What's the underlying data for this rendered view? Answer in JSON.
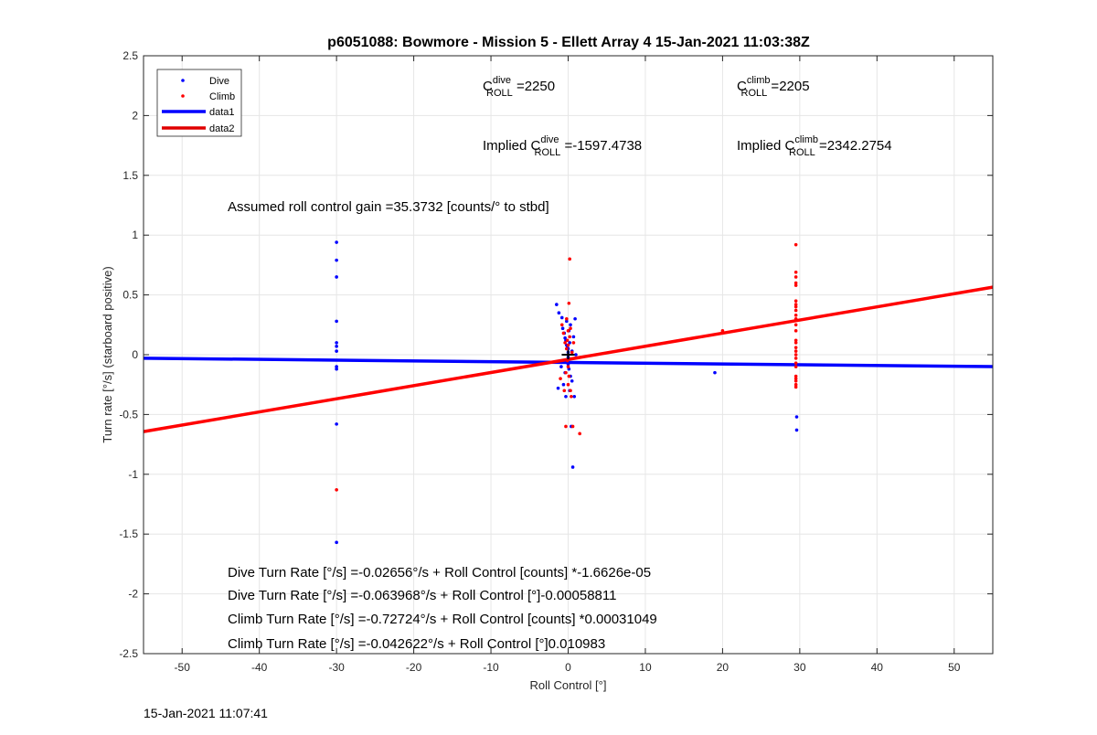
{
  "chart_data": {
    "type": "scatter",
    "title": "p6051088: Bowmore - Mission 5 - Ellett Array 4 15-Jan-2021 11:03:38Z",
    "xlabel": "Roll Control [°]",
    "ylabel": "Turn rate [°/s] (starboard positive)",
    "xlim": [
      -55,
      55
    ],
    "ylim": [
      -2.5,
      2.5
    ],
    "xticks": [
      -50,
      -40,
      -30,
      -20,
      -10,
      0,
      10,
      20,
      30,
      40,
      50
    ],
    "yticks": [
      -2.5,
      -2,
      -1.5,
      -1,
      -0.5,
      0,
      0.5,
      1,
      1.5,
      2,
      2.5
    ],
    "xtick_labels": [
      "-50",
      "-40",
      "-30",
      "-20",
      "-10",
      "0",
      "10",
      "20",
      "30",
      "40",
      "50"
    ],
    "ytick_labels": [
      "-2.5",
      "-2",
      "-1.5",
      "-1",
      "-0.5",
      "0",
      "0.5",
      "1",
      "1.5",
      "2",
      "2.5"
    ],
    "grid": true,
    "legend_position": "top-left",
    "series": [
      {
        "name": "Dive",
        "kind": "scatter",
        "color": "#0000ff",
        "x": [
          -30,
          -30,
          -30,
          -30,
          -30,
          -30,
          -30,
          -30,
          -30,
          -30,
          -30,
          -1.5,
          -1.3,
          -1.2,
          -0.9,
          -0.8,
          -0.7,
          -0.6,
          -0.5,
          -0.4,
          -0.4,
          -0.3,
          -0.3,
          -0.2,
          -0.2,
          -0.1,
          -0.1,
          0,
          0,
          0,
          0,
          0.1,
          0.1,
          0.2,
          0.2,
          0.3,
          0.3,
          0.4,
          0.5,
          0.5,
          0.6,
          0.7,
          0.8,
          0.9,
          1.0,
          19,
          29.6,
          29.6
        ],
        "y": [
          0.94,
          0.79,
          0.65,
          0.28,
          0.1,
          0.07,
          0.03,
          -0.1,
          -0.12,
          -0.58,
          -1.57,
          0.42,
          -0.28,
          0.35,
          -0.1,
          0.31,
          0.22,
          -0.25,
          0.18,
          0.14,
          -0.15,
          0.12,
          -0.35,
          0.28,
          0.08,
          0.06,
          -0.05,
          0.05,
          0.02,
          -0.02,
          -0.08,
          0.2,
          -0.12,
          0.1,
          -0.3,
          0.25,
          -0.18,
          -0.6,
          0.03,
          -0.22,
          -0.94,
          0.15,
          -0.35,
          0.3,
          0.0,
          -0.15,
          -0.52,
          -0.63
        ]
      },
      {
        "name": "Climb",
        "kind": "scatter",
        "color": "#ff0000",
        "x": [
          -30,
          -1.0,
          -0.8,
          -0.6,
          -0.5,
          -0.4,
          -0.3,
          -0.2,
          -0.2,
          -0.1,
          -0.1,
          0,
          0,
          0,
          0,
          0.1,
          0.1,
          0.2,
          0.3,
          0.3,
          0.4,
          0.5,
          0.6,
          0.7,
          1.5,
          0.2,
          -0.3,
          20,
          29.5,
          29.5,
          29.5,
          29.5,
          29.5,
          29.5,
          29.5,
          29.5,
          29.5,
          29.5,
          29.5,
          29.5,
          29.5,
          29.5,
          29.5,
          29.5,
          29.5,
          29.5,
          29.5,
          29.5,
          29.5,
          29.5,
          29.5,
          29.5,
          29.5,
          29.5
        ],
        "y": [
          -1.13,
          -0.2,
          0.25,
          0.18,
          -0.3,
          0.1,
          -0.15,
          0.3,
          0.05,
          -0.05,
          0.12,
          0.2,
          -0.1,
          -0.25,
          0.08,
          0.43,
          -0.18,
          0.15,
          -0.3,
          0.22,
          -0.35,
          0.02,
          -0.6,
          0.1,
          -0.66,
          0.8,
          -0.6,
          0.2,
          0.92,
          0.69,
          0.65,
          0.6,
          0.58,
          0.45,
          0.42,
          0.4,
          0.37,
          0.33,
          0.3,
          0.25,
          0.2,
          0.12,
          0.1,
          0.06,
          0.03,
          0.0,
          -0.03,
          -0.07,
          -0.1,
          -0.18,
          -0.22,
          -0.25,
          -0.27,
          -0.2
        ]
      },
      {
        "name": "data1",
        "kind": "line",
        "color": "#0000ff",
        "x": [
          -55,
          55
        ],
        "y": [
          -0.0294,
          -0.0997
        ]
      },
      {
        "name": "data2",
        "kind": "line",
        "color": "#ff0000",
        "x": [
          -55,
          55
        ],
        "y": [
          -0.6434,
          0.5648
        ]
      }
    ],
    "annotations": {
      "croll_dive": {
        "prefix": "C",
        "sup": "dive",
        "sub": "ROLL",
        "suffix": " =2250"
      },
      "croll_climb": {
        "prefix": "C",
        "sup": "climb",
        "sub": "ROLL",
        "suffix": " =2205"
      },
      "implied_dive": {
        "prefix": "Implied C",
        "sup": "dive",
        "sub": "ROLL",
        "suffix": " =-1597.4738"
      },
      "implied_climb": {
        "prefix": "Implied C",
        "sup": "climb",
        "sub": "ROLL",
        "suffix": " =2342.2754"
      },
      "gain": "Assumed roll control gain =35.3732 [counts/° to stbd]",
      "fits": [
        "Dive Turn Rate [°/s] =-0.02656°/s + Roll Control [counts] *-1.6626e-05",
        "Dive Turn Rate [°/s] =-0.063968°/s + Roll Control [°]-0.00058811",
        "Climb Turn Rate [°/s] =-0.72724°/s + Roll Control [counts] *0.00031049",
        "Climb Turn Rate [°/s] =-0.042622°/s + Roll Control [°]0.010983"
      ]
    },
    "footer_timestamp": "15-Jan-2021 11:07:41"
  }
}
